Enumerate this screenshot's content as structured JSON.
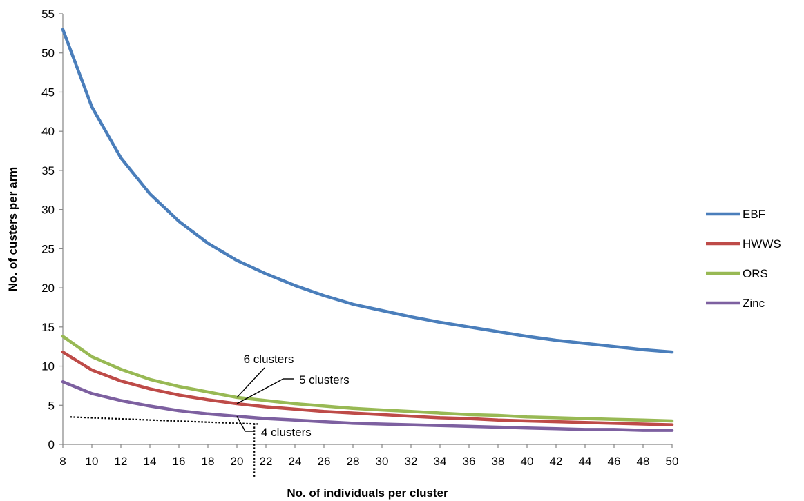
{
  "chart_data": {
    "type": "line",
    "title": "",
    "xlabel": "No. of individuals per cluster",
    "ylabel": "No. of custers per arm",
    "x": [
      8,
      10,
      12,
      14,
      16,
      18,
      20,
      22,
      24,
      26,
      28,
      30,
      32,
      34,
      36,
      38,
      40,
      42,
      44,
      46,
      48,
      50
    ],
    "xticks": [
      "8",
      "10",
      "12",
      "14",
      "16",
      "18",
      "20",
      "22",
      "24",
      "26",
      "28",
      "30",
      "32",
      "34",
      "36",
      "38",
      "40",
      "42",
      "44",
      "46",
      "48",
      "50"
    ],
    "yticks": [
      "0",
      "5",
      "10",
      "15",
      "20",
      "25",
      "30",
      "35",
      "40",
      "45",
      "50",
      "55"
    ],
    "ylim": [
      0,
      55
    ],
    "grid": false,
    "legend_position": "right",
    "series": [
      {
        "name": "EBF",
        "color": "#4a7ebb",
        "values": [
          53,
          43.1,
          36.6,
          32,
          28.5,
          25.7,
          23.5,
          21.8,
          20.3,
          19,
          17.9,
          17.1,
          16.3,
          15.6,
          15,
          14.4,
          13.8,
          13.3,
          12.9,
          12.5,
          12.1,
          11.8
        ]
      },
      {
        "name": "HWWS",
        "color": "#be4b48",
        "values": [
          11.8,
          9.5,
          8.1,
          7.1,
          6.3,
          5.7,
          5.2,
          4.8,
          4.5,
          4.2,
          4,
          3.8,
          3.6,
          3.4,
          3.3,
          3.1,
          3,
          2.9,
          2.8,
          2.7,
          2.6,
          2.5
        ]
      },
      {
        "name": "ORS",
        "color": "#98b954",
        "values": [
          13.8,
          11.2,
          9.6,
          8.3,
          7.4,
          6.7,
          6,
          5.6,
          5.2,
          4.9,
          4.6,
          4.4,
          4.2,
          4,
          3.8,
          3.7,
          3.5,
          3.4,
          3.3,
          3.2,
          3.1,
          3
        ]
      },
      {
        "name": "Zinc",
        "color": "#7d60a0",
        "values": [
          8,
          6.5,
          5.6,
          4.9,
          4.3,
          3.9,
          3.6,
          3.3,
          3.1,
          2.9,
          2.7,
          2.6,
          2.5,
          2.4,
          2.3,
          2.2,
          2.1,
          2,
          1.9,
          1.9,
          1.8,
          1.8
        ]
      }
    ],
    "annotations": [
      {
        "label": "6 clusters",
        "x": 20,
        "y": 6
      },
      {
        "label": "5 clusters",
        "x": 20,
        "y": 5.2
      },
      {
        "label": "4 clusters",
        "x": 20,
        "y": 3.6
      }
    ],
    "reference_lines": [
      {
        "style": "dotted",
        "from": [
          8.5,
          3.5
        ],
        "to": [
          21.5,
          2.6
        ]
      },
      {
        "style": "dotted",
        "from": [
          21.2,
          2.7
        ],
        "to": [
          21.2,
          -4.2
        ]
      }
    ]
  }
}
